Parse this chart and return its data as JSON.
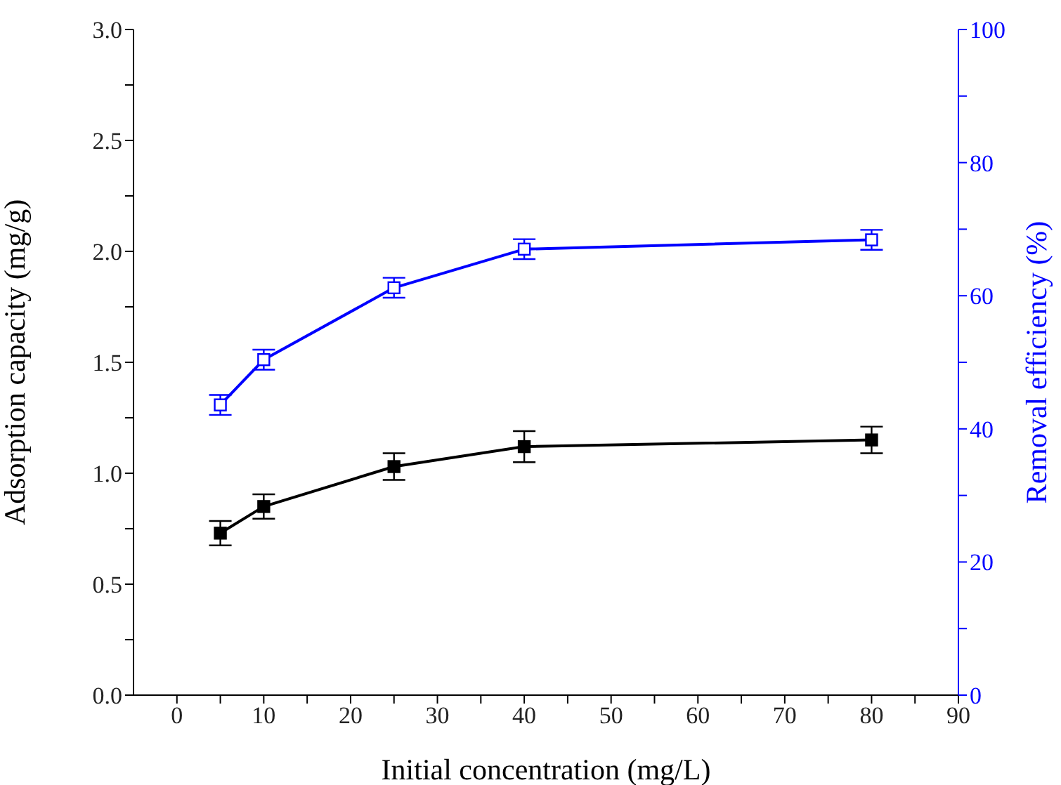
{
  "chart_data": {
    "type": "line",
    "xlabel": "Initial concentration (mg/L)",
    "ylabel": "Adsorption capacity (mg/g)",
    "y2label": "Removal efficiency (%)",
    "x": [
      5,
      10,
      25,
      40,
      80
    ],
    "series": [
      {
        "color": "#000000",
        "values": [
          0.73,
          0.85,
          1.03,
          1.12,
          1.15
        ],
        "errors": [
          0.055,
          0.055,
          0.06,
          0.07,
          0.06
        ],
        "axis": "y"
      },
      {
        "color": "#0000ff",
        "values": [
          43.6,
          50.4,
          61.2,
          67.0,
          68.4
        ],
        "errors": [
          1.5,
          1.5,
          1.5,
          1.5,
          1.5
        ],
        "axis": "y2"
      }
    ],
    "marker": "square",
    "line_style": "solid",
    "grid": false,
    "legend": false,
    "xlim": [
      -5,
      90
    ],
    "xticks": [
      0,
      {
        "value": 5,
        "label": null
      },
      10,
      {
        "value": 15,
        "label": null
      },
      20,
      {
        "value": 25,
        "label": null
      },
      30,
      {
        "value": 35,
        "label": null
      },
      40,
      {
        "value": 45,
        "label": null
      },
      50,
      {
        "value": 55,
        "label": null
      },
      60,
      {
        "value": 65,
        "label": null
      },
      70,
      {
        "value": 75,
        "label": null
      },
      80,
      {
        "value": 85,
        "label": null
      },
      90
    ],
    "ylim": [
      0,
      3
    ],
    "yticks": [
      {
        "value": 0,
        "label": "0.0"
      },
      {
        "value": 0.25,
        "label": null
      },
      {
        "value": 0.5,
        "label": "0.5"
      },
      {
        "value": 0.75,
        "label": null
      },
      {
        "value": 1,
        "label": "1.0"
      },
      {
        "value": 1.25,
        "label": null
      },
      {
        "value": 1.5,
        "label": "1.5"
      },
      {
        "value": 1.75,
        "label": null
      },
      {
        "value": 2,
        "label": "2.0"
      },
      {
        "value": 2.25,
        "label": null
      },
      {
        "value": 2.5,
        "label": "2.5"
      },
      {
        "value": 2.75,
        "label": null
      },
      {
        "value": 3,
        "label": "3.0"
      }
    ],
    "y2lim": [
      0,
      100
    ],
    "y2ticks": [
      0,
      {
        "value": 10,
        "label": null
      },
      20,
      {
        "value": 30,
        "label": null
      },
      40,
      {
        "value": 50,
        "label": null
      },
      60,
      {
        "value": 70,
        "label": null
      },
      80,
      {
        "value": 90,
        "label": null
      },
      100
    ]
  }
}
